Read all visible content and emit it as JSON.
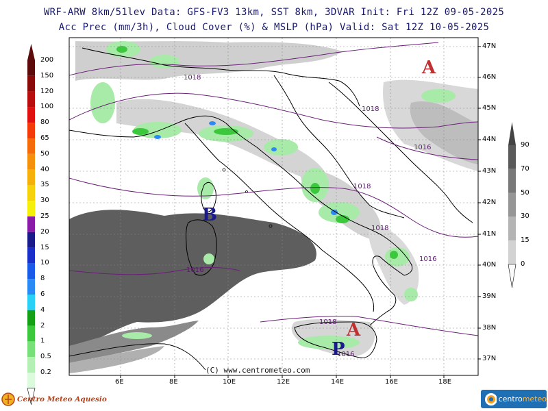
{
  "header": {
    "line1": "WRF-ARW 8km/51lev  Data: GFS-FV3 13km, SST 8km, 3DVAR  Init: Fri 12Z 09-05-2025",
    "line2": "Acc Prec (mm/3h), Cloud Cover (%) & MSLP (hPa)  Valid: Sat 12Z 10-05-2025"
  },
  "precip_scale": {
    "labels": [
      "200",
      "150",
      "120",
      "100",
      "80",
      "65",
      "50",
      "40",
      "35",
      "30",
      "25",
      "20",
      "15",
      "10",
      "8",
      "6",
      "4",
      "2",
      "1",
      "0.5",
      "0.2"
    ],
    "colors": [
      "#5c0a0a",
      "#8a0a0a",
      "#b80d0d",
      "#e01010",
      "#f53a0a",
      "#f56b0a",
      "#f5900a",
      "#f5b00a",
      "#f5d20a",
      "#f5f00a",
      "#8a1aa8",
      "#1a1a8a",
      "#1a2fc8",
      "#1a5ae8",
      "#2a8af5",
      "#2ad0f5",
      "#14a014",
      "#3cc83c",
      "#78e078",
      "#b4f0b4",
      "#dcfadc"
    ]
  },
  "cloud_scale": {
    "labels": [
      "90",
      "70",
      "50",
      "30",
      "15",
      "0"
    ],
    "colors": [
      "#5a5a5a",
      "#787878",
      "#969696",
      "#b4b4b4",
      "#d2d2d2",
      "#f0f0f0"
    ]
  },
  "lat_labels": [
    "47N",
    "46N",
    "45N",
    "44N",
    "43N",
    "42N",
    "41N",
    "40N",
    "39N",
    "38N",
    "37N"
  ],
  "lon_labels": [
    "6E",
    "8E",
    "10E",
    "12E",
    "14E",
    "16E",
    "18E"
  ],
  "pressure_centers": [
    {
      "letter": "A",
      "color": "#c03030"
    },
    {
      "letter": "B",
      "color": "#1a1a8a"
    },
    {
      "letter": "A",
      "color": "#c03030"
    },
    {
      "letter": "P",
      "color": "#1a1a8a"
    }
  ],
  "isobar_labels": [
    "1018",
    "1018",
    "1016",
    "1018",
    "1018",
    "1016",
    "1016",
    "1018",
    "1016"
  ],
  "copyright": "(C) www.centrometeo.com",
  "logo_left": "Centro Meteo Aquesio",
  "logo_right": {
    "part1": "centro",
    "part2": "meteo"
  }
}
